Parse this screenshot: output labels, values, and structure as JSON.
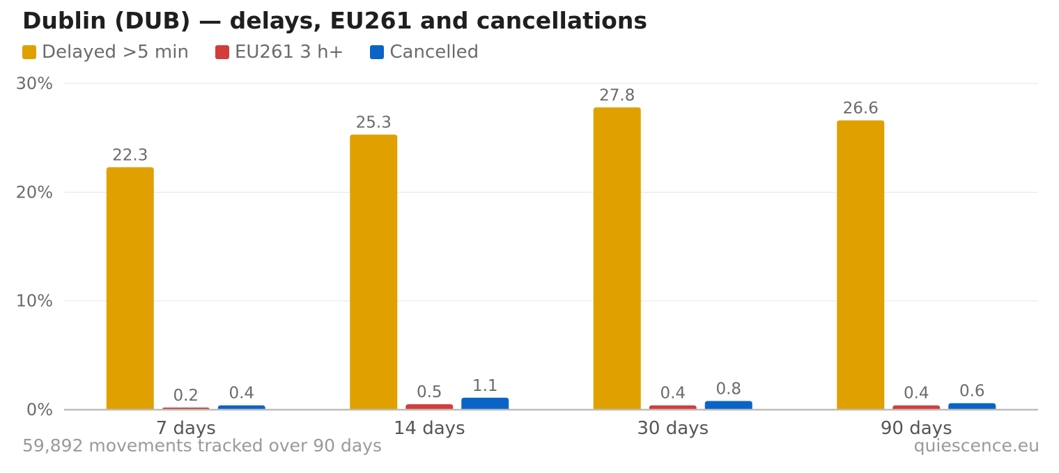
{
  "chart_data": {
    "type": "bar",
    "title": "Dublin (DUB) — delays, EU261 and cancellations",
    "categories": [
      "7 days",
      "14 days",
      "30 days",
      "90 days"
    ],
    "series": [
      {
        "name": "Delayed >5 min",
        "color": "#E0A000",
        "values": [
          22.3,
          25.3,
          27.8,
          26.6
        ]
      },
      {
        "name": "EU261 3 h+",
        "color": "#D43C3C",
        "values": [
          0.2,
          0.5,
          0.4,
          0.4
        ]
      },
      {
        "name": "Cancelled",
        "color": "#0A64C8",
        "values": [
          0.4,
          1.1,
          0.8,
          0.6
        ]
      }
    ],
    "value_labels": [
      [
        "22.3",
        "25.3",
        "27.8",
        "26.6"
      ],
      [
        "0.2",
        "0.5",
        "0.4",
        "0.4"
      ],
      [
        "0.4",
        "1.1",
        "0.8",
        "0.6"
      ]
    ],
    "y_ticks": [
      {
        "value": 0,
        "label": "0%"
      },
      {
        "value": 10,
        "label": "10%"
      },
      {
        "value": 20,
        "label": "20%"
      },
      {
        "value": 30,
        "label": "30%"
      }
    ],
    "ylim": [
      0,
      30
    ],
    "grid": true,
    "legend_position": "top-left",
    "xlabel": "",
    "ylabel": ""
  },
  "footer": {
    "note": "59,892 movements tracked over 90 days",
    "source": "quiescence.eu"
  }
}
